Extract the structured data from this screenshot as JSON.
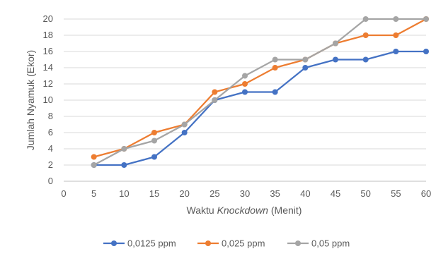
{
  "chart_data": {
    "type": "line",
    "x": [
      5,
      10,
      15,
      20,
      25,
      30,
      35,
      40,
      45,
      50,
      55,
      60
    ],
    "series": [
      {
        "name": "0,0125 ppm",
        "color": "#4472C4",
        "values": [
          2,
          2,
          3,
          6,
          10,
          11,
          11,
          14,
          15,
          15,
          16,
          16
        ]
      },
      {
        "name": "0,025 ppm",
        "color": "#ED7D31",
        "values": [
          3,
          4,
          6,
          7,
          11,
          12,
          14,
          15,
          17,
          18,
          18,
          20
        ]
      },
      {
        "name": "0,05 ppm",
        "color": "#A5A5A5",
        "values": [
          2,
          4,
          5,
          7,
          10,
          13,
          15,
          15,
          17,
          20,
          20,
          20
        ]
      }
    ],
    "xlabel_prefix": "Waktu ",
    "xlabel_italic": "Knockdown",
    "xlabel_suffix": " (Menit)",
    "ylabel": "Jumlah Nyamuk (Ekor)",
    "xlim": [
      0,
      60
    ],
    "ylim": [
      0,
      20
    ],
    "xticks": [
      0,
      5,
      10,
      15,
      20,
      25,
      30,
      35,
      40,
      45,
      50,
      55,
      60
    ],
    "yticks": [
      0,
      2,
      4,
      6,
      8,
      10,
      12,
      14,
      16,
      18,
      20
    ],
    "grid": true,
    "legend_position": "bottom"
  }
}
